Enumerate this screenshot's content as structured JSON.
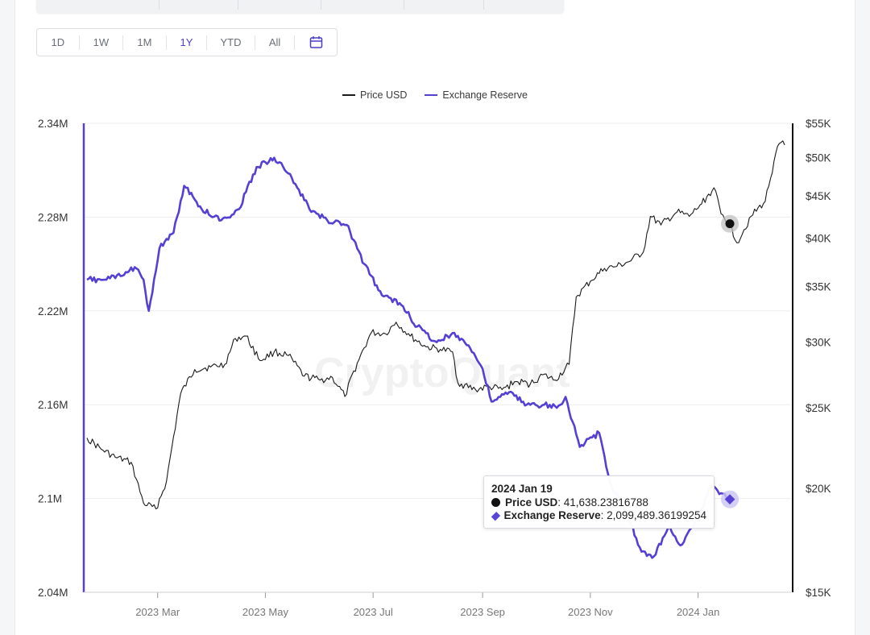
{
  "range_buttons": {
    "b1d": "1D",
    "b1w": "1W",
    "b1m": "1M",
    "b1y": "1Y",
    "bytd": "YTD",
    "ball": "All"
  },
  "active_range": "1Y",
  "icons": {
    "calendar": "calendar-icon"
  },
  "colors": {
    "price": "#1a1a1a",
    "reserve": "#5540d4",
    "accent": "#4a3fc6"
  },
  "watermark": "CryptoQuant",
  "tooltip": {
    "date": "2024 Jan 19",
    "price_label": "Price USD",
    "price_value": ": 41,638.23816788",
    "reserve_label": "Exchange Reserve",
    "reserve_value": ": 2,099,489.36199254"
  },
  "chart_data": {
    "type": "line",
    "legend": [
      "Price USD",
      "Exchange Reserve"
    ],
    "legend_position": "top-center",
    "x_ticks": [
      "2023 Mar",
      "2023 May",
      "2023 Jul",
      "2023 Sep",
      "2023 Nov",
      "2024 Jan"
    ],
    "left_axis": {
      "ticks": [
        "2.34M",
        "2.28M",
        "2.22M",
        "2.16M",
        "2.1M",
        "2.04M"
      ],
      "ylim": [
        2040000,
        2340000
      ]
    },
    "right_axis": {
      "ticks": [
        "$55K",
        "$50K",
        "$45K",
        "$40K",
        "$35K",
        "$30K",
        "$25K",
        "$20K",
        "$15K"
      ],
      "scale": "log",
      "ylim": [
        15000,
        55000
      ]
    },
    "grid": true,
    "series": [
      {
        "name": "Price USD",
        "axis": "right",
        "points": [
          [
            "2023-01-20",
            23000
          ],
          [
            "2023-01-28",
            22300
          ],
          [
            "2023-02-05",
            21800
          ],
          [
            "2023-02-14",
            21500
          ],
          [
            "2023-02-21",
            19200
          ],
          [
            "2023-02-28",
            18900
          ],
          [
            "2023-03-06",
            20400
          ],
          [
            "2023-03-14",
            26000
          ],
          [
            "2023-03-22",
            27800
          ],
          [
            "2023-03-31",
            28000
          ],
          [
            "2023-04-08",
            28200
          ],
          [
            "2023-04-14",
            30300
          ],
          [
            "2023-04-20",
            30500
          ],
          [
            "2023-04-28",
            28500
          ],
          [
            "2023-05-06",
            29200
          ],
          [
            "2023-05-14",
            28900
          ],
          [
            "2023-05-23",
            27300
          ],
          [
            "2023-06-01",
            27000
          ],
          [
            "2023-06-08",
            27200
          ],
          [
            "2023-06-15",
            25800
          ],
          [
            "2023-06-22",
            28300
          ],
          [
            "2023-06-30",
            30800
          ],
          [
            "2023-07-08",
            30700
          ],
          [
            "2023-07-14",
            31700
          ],
          [
            "2023-07-22",
            30500
          ],
          [
            "2023-07-31",
            29600
          ],
          [
            "2023-08-08",
            29400
          ],
          [
            "2023-08-15",
            29200
          ],
          [
            "2023-08-18",
            26800
          ],
          [
            "2023-08-28",
            26300
          ],
          [
            "2023-09-05",
            26500
          ],
          [
            "2023-09-12",
            26300
          ],
          [
            "2023-09-20",
            26900
          ],
          [
            "2023-09-28",
            26700
          ],
          [
            "2023-10-05",
            27400
          ],
          [
            "2023-10-12",
            27000
          ],
          [
            "2023-10-20",
            28200
          ],
          [
            "2023-10-24",
            34000
          ],
          [
            "2023-11-01",
            35500
          ],
          [
            "2023-11-09",
            36800
          ],
          [
            "2023-11-16",
            37000
          ],
          [
            "2023-11-23",
            37500
          ],
          [
            "2023-12-01",
            38500
          ],
          [
            "2023-12-05",
            42500
          ],
          [
            "2023-12-11",
            41500
          ],
          [
            "2023-12-20",
            43000
          ],
          [
            "2023-12-27",
            42500
          ],
          [
            "2024-01-03",
            44000
          ],
          [
            "2024-01-10",
            46000
          ],
          [
            "2024-01-14",
            42800
          ],
          [
            "2024-01-19",
            41638
          ],
          [
            "2024-01-23",
            39500
          ],
          [
            "2024-01-31",
            42500
          ],
          [
            "2024-02-08",
            44300
          ],
          [
            "2024-02-13",
            49500
          ],
          [
            "2024-02-16",
            52000
          ],
          [
            "2024-02-19",
            51800
          ]
        ]
      },
      {
        "name": "Exchange Reserve",
        "axis": "left",
        "points": [
          [
            "2023-01-20",
            2240000
          ],
          [
            "2023-01-30",
            2240000
          ],
          [
            "2023-02-10",
            2243000
          ],
          [
            "2023-02-16",
            2248000
          ],
          [
            "2023-02-21",
            2240000
          ],
          [
            "2023-02-24",
            2220000
          ],
          [
            "2023-03-02",
            2260000
          ],
          [
            "2023-03-10",
            2270000
          ],
          [
            "2023-03-16",
            2300000
          ],
          [
            "2023-03-26",
            2285000
          ],
          [
            "2023-04-06",
            2278000
          ],
          [
            "2023-04-16",
            2285000
          ],
          [
            "2023-04-26",
            2312000
          ],
          [
            "2023-05-06",
            2318000
          ],
          [
            "2023-05-16",
            2305000
          ],
          [
            "2023-05-26",
            2285000
          ],
          [
            "2023-06-05",
            2278000
          ],
          [
            "2023-06-16",
            2275000
          ],
          [
            "2023-06-26",
            2250000
          ],
          [
            "2023-07-06",
            2230000
          ],
          [
            "2023-07-16",
            2225000
          ],
          [
            "2023-07-26",
            2210000
          ],
          [
            "2023-08-06",
            2200000
          ],
          [
            "2023-08-16",
            2206000
          ],
          [
            "2023-08-24",
            2198000
          ],
          [
            "2023-09-01",
            2183000
          ],
          [
            "2023-09-06",
            2162000
          ],
          [
            "2023-09-16",
            2168000
          ],
          [
            "2023-09-26",
            2160000
          ],
          [
            "2023-10-06",
            2160000
          ],
          [
            "2023-10-13",
            2158000
          ],
          [
            "2023-10-18",
            2165000
          ],
          [
            "2023-10-26",
            2133000
          ],
          [
            "2023-11-06",
            2142000
          ],
          [
            "2023-11-12",
            2110000
          ],
          [
            "2023-11-22",
            2090000
          ],
          [
            "2023-11-30",
            2066000
          ],
          [
            "2023-12-06",
            2062000
          ],
          [
            "2023-12-16",
            2082000
          ],
          [
            "2023-12-22",
            2070000
          ],
          [
            "2024-01-02",
            2090000
          ],
          [
            "2024-01-08",
            2107000
          ],
          [
            "2024-01-16",
            2103000
          ],
          [
            "2024-01-19",
            2099489
          ]
        ]
      }
    ]
  }
}
